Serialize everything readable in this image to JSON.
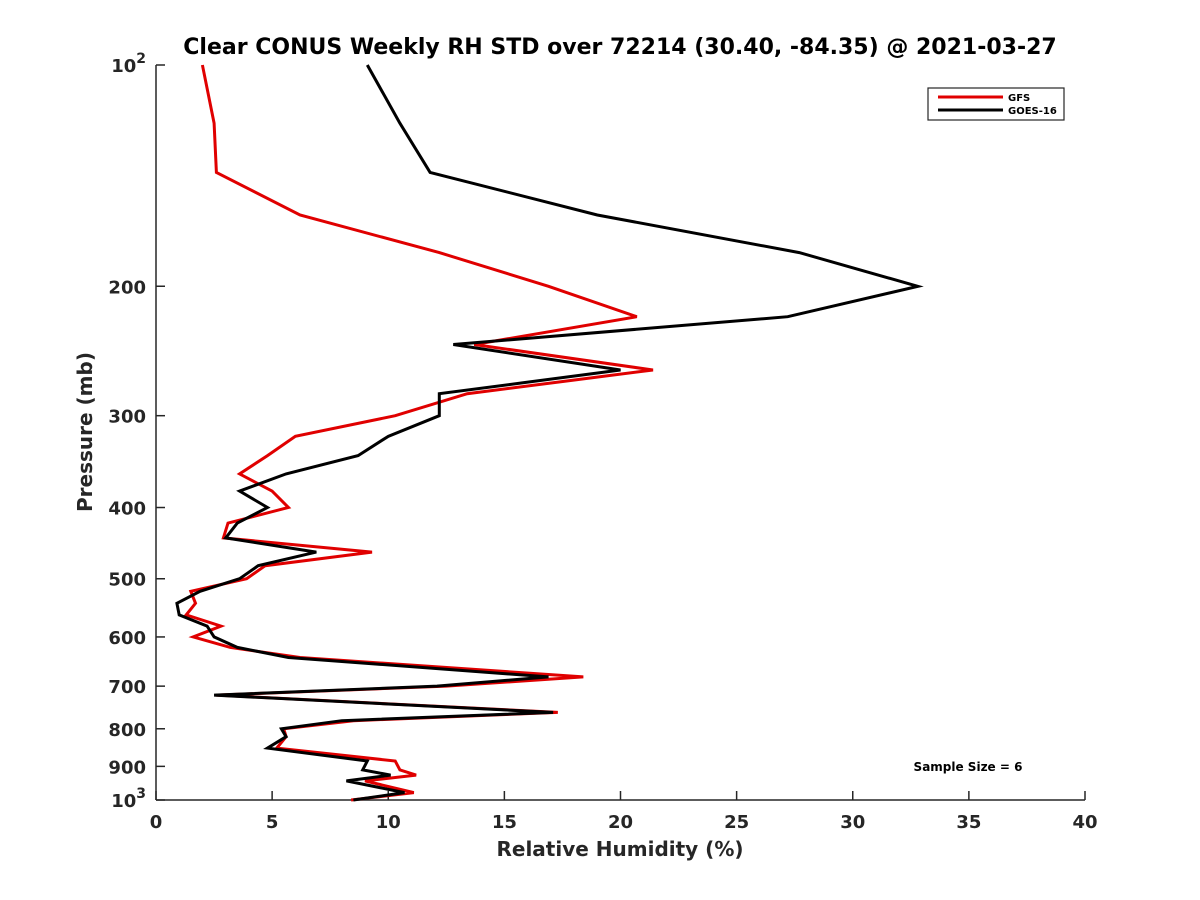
{
  "chart_data": {
    "type": "line",
    "title": "Clear CONUS Weekly RH STD over 72214 (30.40, -84.35) @ 2021-03-27",
    "xlabel": "Relative Humidity (%)",
    "ylabel": "Pressure (mb)",
    "xlim": [
      0,
      40
    ],
    "ylim": [
      100,
      1000
    ],
    "yscale": "log",
    "yreversed": true,
    "grid": false,
    "xticks": [
      0,
      5,
      10,
      15,
      20,
      25,
      30,
      35,
      40
    ],
    "xtick_labels": [
      "0",
      "5",
      "10",
      "15",
      "20",
      "25",
      "30",
      "35",
      "40"
    ],
    "yticks": [
      100,
      200,
      300,
      400,
      500,
      600,
      700,
      800,
      900,
      1000
    ],
    "ytick_labels": [
      "10",
      "200",
      "300",
      "400",
      "500",
      "600",
      "700",
      "800",
      "900",
      "10"
    ],
    "ytick_exponents": [
      "2",
      "",
      "",
      "",
      "",
      "",
      "",
      "",
      "",
      "3"
    ],
    "legend_placement": "top-right",
    "annotation": "Sample Size = 6",
    "pressure": [
      100,
      120,
      140,
      160,
      180,
      200,
      220,
      240,
      260,
      280,
      300,
      320,
      340,
      360,
      380,
      400,
      420,
      440,
      460,
      480,
      500,
      520,
      540,
      560,
      580,
      600,
      620,
      640,
      680,
      700,
      720,
      760,
      780,
      800,
      820,
      850,
      885,
      910,
      925,
      942,
      977,
      1000
    ],
    "series": [
      {
        "name": "GFS",
        "color": "#e00000",
        "values": [
          2.0,
          2.5,
          2.6,
          6.2,
          12.2,
          16.9,
          20.7,
          13.7,
          21.4,
          13.4,
          10.3,
          6.0,
          4.8,
          3.6,
          5.0,
          5.7,
          3.1,
          2.9,
          9.3,
          4.7,
          3.9,
          1.5,
          1.7,
          1.3,
          2.8,
          1.6,
          3.2,
          6.2,
          18.4,
          12.5,
          2.6,
          17.3,
          8.5,
          5.5,
          5.6,
          5.2,
          10.3,
          10.5,
          11.2,
          9.0,
          11.1,
          8.4
        ]
      },
      {
        "name": "GOES-16",
        "color": "#000000",
        "values": [
          9.1,
          10.5,
          11.8,
          19.0,
          27.7,
          32.8,
          27.2,
          12.8,
          20.0,
          12.2,
          12.2,
          10.0,
          8.7,
          5.6,
          3.6,
          4.8,
          3.5,
          3.0,
          6.9,
          4.4,
          3.6,
          1.9,
          0.9,
          1.0,
          2.2,
          2.5,
          3.5,
          5.7,
          16.9,
          12.1,
          2.5,
          17.1,
          8.0,
          5.4,
          5.6,
          4.8,
          9.1,
          8.9,
          10.1,
          8.2,
          10.7,
          8.5
        ]
      }
    ]
  }
}
